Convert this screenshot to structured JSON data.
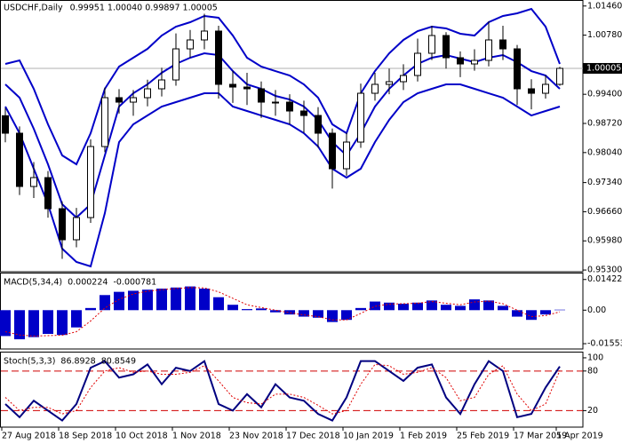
{
  "chart_data": [
    {
      "type": "candlestick",
      "title": "USDCHF,Daily",
      "subtitle": "0.99951 1.00040 0.99897 1.00005",
      "categories": [
        "27 Aug 2018",
        null,
        null,
        null,
        "18 Sep 2018",
        null,
        null,
        null,
        "10 Oct 2018",
        null,
        null,
        null,
        "1 Nov 2018",
        null,
        null,
        null,
        "23 Nov 2018",
        null,
        null,
        null,
        "17 Dec 2018",
        null,
        null,
        null,
        "10 Jan 2019",
        null,
        null,
        null,
        "1 Feb 2019",
        null,
        null,
        null,
        "25 Feb 2019",
        null,
        null,
        null,
        "17 Mar 2019",
        null,
        null,
        "5 Apr 2019"
      ],
      "open": [
        0.989,
        0.98492,
        0.97249,
        0.97456,
        0.96731,
        0.96006,
        0.96524,
        0.98181,
        0.99321,
        0.99217,
        0.99321,
        0.99528,
        0.99735,
        1.0046,
        1.00668,
        1.00875,
        0.99632,
        0.99569,
        0.99528,
        0.99217,
        0.99217,
        0.9901,
        0.98906,
        0.98492,
        0.97663,
        0.98285,
        0.99424,
        0.99632,
        0.99694,
        0.99839,
        1.00357,
        1.00771,
        1.00253,
        1.00108,
        1.00191,
        1.00668,
        1.0046,
        0.99528,
        0.99424,
        0.99632
      ],
      "high": [
        0.9908,
        0.9865,
        0.9782,
        0.9761,
        0.969,
        0.9675,
        0.9835,
        0.9956,
        0.9952,
        0.995,
        0.9974,
        1.0002,
        1.0082,
        1.009,
        1.0128,
        1.01,
        0.9995,
        0.999,
        0.997,
        0.995,
        0.994,
        0.9925,
        0.991,
        0.986,
        0.985,
        0.9965,
        0.999,
        1.0,
        1.001,
        1.007,
        1.01,
        1.0085,
        1.004,
        1.0045,
        1.011,
        1.01,
        1.0055,
        0.9975,
        0.9985,
        1.0004
      ],
      "low": [
        0.9828,
        0.9705,
        0.9698,
        0.9652,
        0.9556,
        0.9583,
        0.964,
        0.9805,
        0.9895,
        0.989,
        0.9912,
        0.9935,
        0.996,
        1.0025,
        1.0045,
        0.993,
        0.992,
        0.9915,
        0.9885,
        0.989,
        0.987,
        0.985,
        0.9815,
        0.972,
        0.975,
        0.9815,
        0.9925,
        0.994,
        0.995,
        0.997,
        1.002,
        1.0,
        0.998,
        0.9995,
        1.0005,
        1.002,
        0.9915,
        0.9905,
        0.993,
        0.996
      ],
      "close": [
        0.98492,
        0.97249,
        0.97456,
        0.96731,
        0.96006,
        0.96524,
        0.98181,
        0.99321,
        0.99217,
        0.99321,
        0.99528,
        0.99735,
        1.0046,
        1.00668,
        1.00875,
        0.99632,
        0.99569,
        0.99528,
        0.99217,
        0.99217,
        0.9901,
        0.98906,
        0.98492,
        0.97663,
        0.98285,
        0.99424,
        0.99632,
        0.99694,
        0.99839,
        1.00357,
        1.00771,
        1.00253,
        1.00108,
        1.00191,
        1.00668,
        1.0046,
        0.99528,
        0.99424,
        0.99632,
        1.00005
      ],
      "series": [
        {
          "color": "#0000c8",
          "values": [
            1.00108,
            1.00191,
            0.99528,
            0.98699,
            0.97974,
            0.97767,
            0.98492,
            0.99528,
            1.00046,
            1.00253,
            1.0046,
            1.00771,
            1.00978,
            1.01082,
            1.01227,
            1.01186,
            1.00771,
            1.00253,
            1.00046,
            0.99942,
            0.99839,
            0.99632,
            0.99321,
            0.98699,
            0.98492,
            0.99424,
            0.99942,
            1.00357,
            1.00668,
            1.00875,
            1.00978,
            1.00937,
            1.00813,
            1.00771,
            1.01082,
            1.01227,
            1.01289,
            1.01393,
            1.00978,
            1.00108
          ]
        },
        {
          "color": "#0000c8",
          "values": [
            0.99632,
            0.99321,
            0.98596,
            0.97767,
            0.96834,
            0.96524,
            0.96834,
            0.97974,
            0.99114,
            0.99424,
            0.99632,
            0.99901,
            1.00108,
            1.00253,
            1.00357,
            1.00315,
            0.99942,
            0.99632,
            0.99528,
            0.99362,
            0.99279,
            0.99114,
            0.98803,
            0.98285,
            0.97974,
            0.98492,
            0.99114,
            0.99528,
            0.99839,
            1.00108,
            1.00253,
            1.00315,
            1.00232,
            1.0015,
            1.00253,
            1.00315,
            1.0015,
            0.99942,
            0.99839,
            0.99528
          ]
        },
        {
          "color": "#0000c8",
          "values": [
            0.99114,
            0.98492,
            0.97663,
            0.96834,
            0.95798,
            0.95488,
            0.95384,
            0.96627,
            0.98285,
            0.98699,
            0.98906,
            0.99114,
            0.99217,
            0.99321,
            0.99424,
            0.99424,
            0.99114,
            0.9901,
            0.98906,
            0.98803,
            0.98699,
            0.98492,
            0.98181,
            0.97663,
            0.97456,
            0.97663,
            0.98285,
            0.98803,
            0.99217,
            0.99424,
            0.99528,
            0.99632,
            0.99632,
            0.99528,
            0.99424,
            0.99321,
            0.99114,
            0.98906,
            0.9901,
            0.99114
          ]
        }
      ],
      "current_price": 1.00005,
      "ylim": [
        0.9526,
        1.016
      ],
      "yticks": [
        {
          "value": 1.0146,
          "label": "1.01460"
        },
        {
          "value": 1.0078,
          "label": "1.00780"
        },
        {
          "value": 0.994,
          "label": "0.99400"
        },
        {
          "value": 0.9872,
          "label": "0.98720"
        },
        {
          "value": 0.9804,
          "label": "0.98040"
        },
        {
          "value": 0.9734,
          "label": "0.97340"
        },
        {
          "value": 0.9666,
          "label": "0.96660"
        },
        {
          "value": 0.9598,
          "label": "0.95980"
        },
        {
          "value": 0.953,
          "label": "0.95300"
        }
      ]
    },
    {
      "type": "macd",
      "title": "MACD(5,34,4)",
      "series": [
        {
          "color": "#0000c8",
          "values": [
            -0.012,
            -0.0135,
            -0.0125,
            -0.011,
            -0.0115,
            -0.008,
            0.001,
            0.007,
            0.0085,
            0.009,
            0.0095,
            0.01,
            0.0105,
            0.011,
            0.01,
            0.006,
            0.0025,
            0.0005,
            0.0008,
            -0.001,
            -0.002,
            -0.003,
            -0.0035,
            -0.0055,
            -0.0045,
            0.001,
            0.004,
            0.0035,
            0.003,
            0.0035,
            0.0045,
            0.0025,
            0.002,
            0.005,
            0.0045,
            0.002,
            -0.003,
            -0.0045,
            -0.002,
            0.000224
          ]
        },
        {
          "color": "#e00000",
          "values": [
            -0.01,
            -0.0115,
            -0.012,
            -0.0118,
            -0.0116,
            -0.01,
            -0.005,
            0.001,
            0.005,
            0.0075,
            0.0088,
            0.0095,
            0.01,
            0.0105,
            0.0103,
            0.0085,
            0.0055,
            0.0025,
            0.0012,
            0.0,
            -0.0012,
            -0.0022,
            -0.003,
            -0.0045,
            -0.0045,
            -0.0015,
            0.0018,
            0.0028,
            0.003,
            0.0032,
            0.004,
            0.0032,
            0.0025,
            0.0038,
            0.0042,
            0.003,
            0.0,
            -0.003,
            -0.0025,
            -0.000781
          ]
        }
      ],
      "ylim": [
        -0.018,
        0.017
      ],
      "yticks": [
        0.014221,
        {
          "value": 0,
          "label": "0.00"
        },
        -0.015537
      ]
    },
    {
      "type": "stoch",
      "title": "Stoch(5,3,3)",
      "series": [
        {
          "color": "#000080",
          "values": [
            30,
            10,
            35,
            20,
            5,
            30,
            85,
            95,
            70,
            75,
            90,
            60,
            85,
            80,
            95,
            30,
            20,
            45,
            25,
            60,
            40,
            35,
            15,
            5,
            40,
            95,
            95,
            80,
            65,
            85,
            90,
            40,
            15,
            60,
            95,
            80,
            10,
            15,
            55,
            86.8928
          ]
        },
        {
          "color": "#e00000",
          "values": [
            40,
            20,
            25,
            25,
            15,
            20,
            55,
            80,
            85,
            78,
            80,
            75,
            75,
            78,
            88,
            65,
            40,
            32,
            30,
            45,
            45,
            40,
            28,
            15,
            20,
            60,
            90,
            88,
            75,
            78,
            85,
            70,
            35,
            40,
            75,
            88,
            45,
            20,
            30,
            80.8549
          ]
        }
      ],
      "levels": [
        80,
        20
      ],
      "level_color": "#d00000",
      "ylim": [
        -5,
        108
      ],
      "yticks": [
        100,
        80,
        20
      ]
    }
  ]
}
